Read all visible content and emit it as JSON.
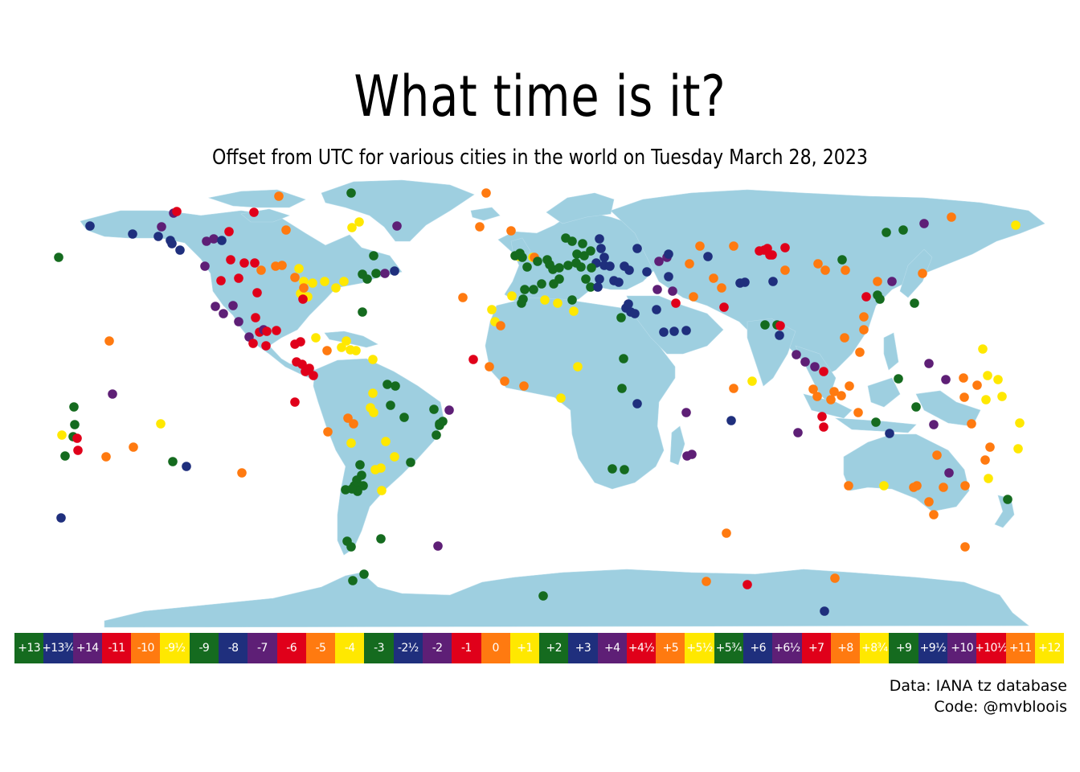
{
  "title": "What time is it?",
  "subtitle": "Offset from UTC for various cities in the world on Tuesday March 28, 2023",
  "credits": {
    "line1": "Data: IANA tz database",
    "line2": "Code: @mvbloois"
  },
  "colors": {
    "land": "#9ecfe0",
    "background": "#ffffff",
    "green": "#156b1f",
    "navy": "#1f2f7d",
    "purple": "#5e1f76",
    "red": "#e0001a",
    "orange": "#ff7a10",
    "yellow": "#ffe800"
  },
  "legend": [
    {
      "label": "+13",
      "color": "#156b1f"
    },
    {
      "label": "+13¾",
      "color": "#1f2f7d"
    },
    {
      "label": "+14",
      "color": "#5e1f76"
    },
    {
      "label": "-11",
      "color": "#e0001a"
    },
    {
      "label": "-10",
      "color": "#ff7a10"
    },
    {
      "label": "-9½",
      "color": "#ffe800"
    },
    {
      "label": "-9",
      "color": "#156b1f"
    },
    {
      "label": "-8",
      "color": "#1f2f7d"
    },
    {
      "label": "-7",
      "color": "#5e1f76"
    },
    {
      "label": "-6",
      "color": "#e0001a"
    },
    {
      "label": "-5",
      "color": "#ff7a10"
    },
    {
      "label": "-4",
      "color": "#ffe800"
    },
    {
      "label": "-3",
      "color": "#156b1f"
    },
    {
      "label": "-2½",
      "color": "#1f2f7d"
    },
    {
      "label": "-2",
      "color": "#5e1f76"
    },
    {
      "label": "-1",
      "color": "#e0001a"
    },
    {
      "label": "0",
      "color": "#ff7a10"
    },
    {
      "label": "+1",
      "color": "#ffe800"
    },
    {
      "label": "+2",
      "color": "#156b1f"
    },
    {
      "label": "+3",
      "color": "#1f2f7d"
    },
    {
      "label": "+4",
      "color": "#5e1f76"
    },
    {
      "label": "+4½",
      "color": "#e0001a"
    },
    {
      "label": "+5",
      "color": "#ff7a10"
    },
    {
      "label": "+5½",
      "color": "#ffe800"
    },
    {
      "label": "+5¾",
      "color": "#156b1f"
    },
    {
      "label": "+6",
      "color": "#1f2f7d"
    },
    {
      "label": "+6½",
      "color": "#5e1f76"
    },
    {
      "label": "+7",
      "color": "#e0001a"
    },
    {
      "label": "+8",
      "color": "#ff7a10"
    },
    {
      "label": "+8¾",
      "color": "#ffe800"
    },
    {
      "label": "+9",
      "color": "#156b1f"
    },
    {
      "label": "+9½",
      "color": "#1f2f7d"
    },
    {
      "label": "+10",
      "color": "#5e1f76"
    },
    {
      "label": "+10½",
      "color": "#e0001a"
    },
    {
      "label": "+11",
      "color": "#ff7a10"
    },
    {
      "label": "+12",
      "color": "#ffe800"
    }
  ]
}
